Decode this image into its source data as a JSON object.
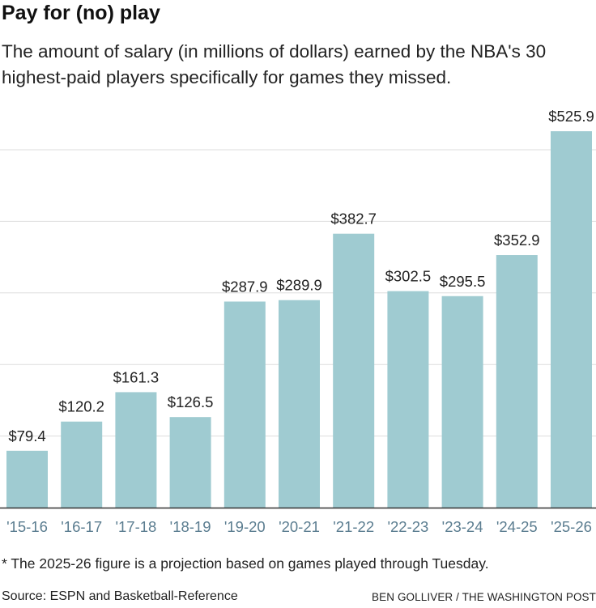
{
  "title": "Pay for (no) play",
  "subtitle": "The amount of salary (in millions of dollars) earned by the NBA's 30 highest-paid players specifically for games they missed.",
  "note": "* The 2025-26 figure is a projection based on games played through Tuesday.",
  "source": "Source: ESPN and Basketball-Reference",
  "credit": "BEN GOLLIVER / THE WASHINGTON POST",
  "colors": {
    "bar": "#9fcbd1",
    "tick_label": "#5b7d90",
    "grid": "#dddddd",
    "baseline": "#333333"
  },
  "chart_data": {
    "type": "bar",
    "categories": [
      "'15-16",
      "'16-17",
      "'17-18",
      "'18-19",
      "'19-20",
      "'20-21",
      "'21-22",
      "'22-23",
      "'23-24",
      "'24-25",
      "'25-26"
    ],
    "values": [
      79.4,
      120.2,
      161.3,
      126.5,
      287.9,
      289.9,
      382.7,
      302.5,
      295.5,
      352.9,
      525.9
    ],
    "data_labels": [
      "$79.4",
      "$120.2",
      "$161.3",
      "$126.5",
      "$287.9",
      "$289.9",
      "$382.7",
      "$302.5",
      "$295.5",
      "$352.9",
      "$525.9"
    ],
    "ylim": [
      0,
      530
    ],
    "gridlines": [
      100,
      200,
      300,
      400,
      500
    ],
    "grid": true,
    "xlabel": "",
    "ylabel": ""
  }
}
